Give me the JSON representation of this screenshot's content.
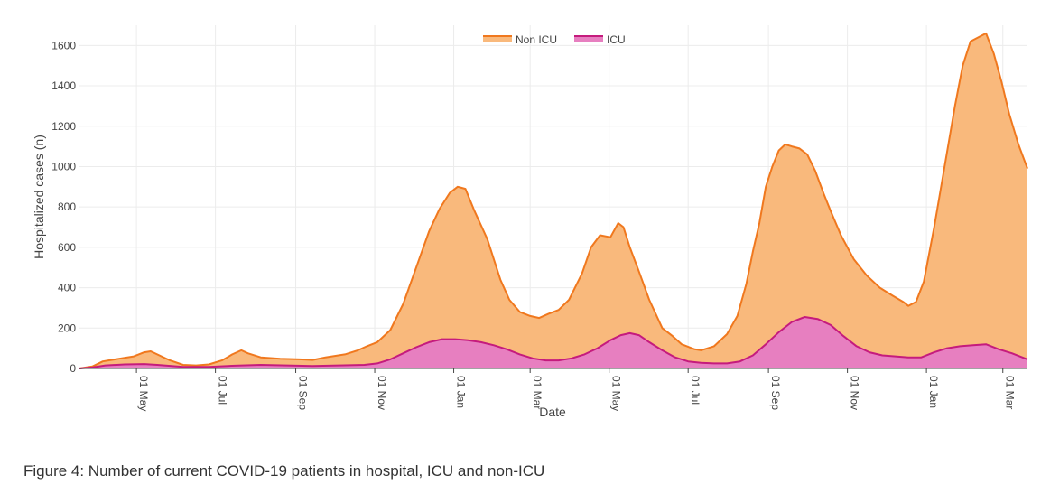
{
  "caption": "Figure 4: Number of current COVID-19 patients in hospital, ICU and non-ICU",
  "chart_data": {
    "type": "area",
    "title": "",
    "xlabel": "Date",
    "ylabel": "Hospitalized cases (n)",
    "x_range_days": [
      0,
      732
    ],
    "ylim": [
      0,
      1700
    ],
    "grid": true,
    "legend": "top-center",
    "y_ticks": [
      0,
      200,
      400,
      600,
      800,
      1000,
      1200,
      1400,
      1600
    ],
    "x_ticks": [
      {
        "label": "01 May",
        "day": 44
      },
      {
        "label": "01 Jul",
        "day": 105
      },
      {
        "label": "01 Sep",
        "day": 167
      },
      {
        "label": "01 Nov",
        "day": 228
      },
      {
        "label": "01 Jan",
        "day": 289
      },
      {
        "label": "01 Mar",
        "day": 348
      },
      {
        "label": "01 May",
        "day": 409
      },
      {
        "label": "01 Jul",
        "day": 470
      },
      {
        "label": "01 Sep",
        "day": 532
      },
      {
        "label": "01 Nov",
        "day": 593
      },
      {
        "label": "01 Jan",
        "day": 654
      },
      {
        "label": "01 Mar",
        "day": 713
      }
    ],
    "series": [
      {
        "name": "Non ICU",
        "color": "#f0781e",
        "fill": "#f9b97c",
        "points": [
          [
            0,
            0
          ],
          [
            10,
            10
          ],
          [
            18,
            35
          ],
          [
            30,
            48
          ],
          [
            42,
            60
          ],
          [
            50,
            80
          ],
          [
            55,
            85
          ],
          [
            60,
            70
          ],
          [
            70,
            40
          ],
          [
            80,
            18
          ],
          [
            90,
            15
          ],
          [
            100,
            20
          ],
          [
            110,
            40
          ],
          [
            118,
            70
          ],
          [
            125,
            90
          ],
          [
            130,
            75
          ],
          [
            140,
            55
          ],
          [
            155,
            48
          ],
          [
            170,
            45
          ],
          [
            180,
            42
          ],
          [
            190,
            55
          ],
          [
            205,
            70
          ],
          [
            215,
            90
          ],
          [
            222,
            110
          ],
          [
            230,
            130
          ],
          [
            240,
            190
          ],
          [
            250,
            320
          ],
          [
            260,
            500
          ],
          [
            270,
            680
          ],
          [
            278,
            790
          ],
          [
            286,
            870
          ],
          [
            292,
            900
          ],
          [
            298,
            890
          ],
          [
            305,
            780
          ],
          [
            315,
            640
          ],
          [
            325,
            440
          ],
          [
            332,
            340
          ],
          [
            340,
            280
          ],
          [
            348,
            260
          ],
          [
            355,
            250
          ],
          [
            362,
            270
          ],
          [
            370,
            290
          ],
          [
            378,
            340
          ],
          [
            388,
            470
          ],
          [
            395,
            600
          ],
          [
            402,
            660
          ],
          [
            410,
            650
          ],
          [
            416,
            720
          ],
          [
            420,
            700
          ],
          [
            425,
            600
          ],
          [
            432,
            480
          ],
          [
            440,
            340
          ],
          [
            450,
            200
          ],
          [
            458,
            160
          ],
          [
            465,
            120
          ],
          [
            475,
            95
          ],
          [
            480,
            90
          ],
          [
            490,
            110
          ],
          [
            500,
            170
          ],
          [
            508,
            260
          ],
          [
            515,
            420
          ],
          [
            520,
            580
          ],
          [
            525,
            720
          ],
          [
            530,
            900
          ],
          [
            535,
            1000
          ],
          [
            540,
            1080
          ],
          [
            545,
            1110
          ],
          [
            550,
            1100
          ],
          [
            556,
            1090
          ],
          [
            562,
            1060
          ],
          [
            568,
            980
          ],
          [
            575,
            860
          ],
          [
            580,
            780
          ],
          [
            588,
            660
          ],
          [
            598,
            540
          ],
          [
            608,
            460
          ],
          [
            618,
            400
          ],
          [
            628,
            360
          ],
          [
            636,
            330
          ],
          [
            640,
            310
          ],
          [
            646,
            330
          ],
          [
            652,
            430
          ],
          [
            660,
            700
          ],
          [
            668,
            1000
          ],
          [
            676,
            1300
          ],
          [
            682,
            1500
          ],
          [
            688,
            1620
          ],
          [
            694,
            1640
          ],
          [
            700,
            1660
          ],
          [
            706,
            1560
          ],
          [
            712,
            1420
          ],
          [
            718,
            1260
          ],
          [
            725,
            1110
          ],
          [
            732,
            990
          ]
        ]
      },
      {
        "name": "ICU",
        "color": "#c51b7d",
        "fill": "#e77fc0",
        "points": [
          [
            0,
            0
          ],
          [
            10,
            5
          ],
          [
            20,
            15
          ],
          [
            35,
            20
          ],
          [
            50,
            22
          ],
          [
            60,
            18
          ],
          [
            80,
            8
          ],
          [
            100,
            8
          ],
          [
            120,
            14
          ],
          [
            140,
            18
          ],
          [
            160,
            15
          ],
          [
            180,
            12
          ],
          [
            200,
            15
          ],
          [
            220,
            18
          ],
          [
            230,
            25
          ],
          [
            240,
            45
          ],
          [
            250,
            75
          ],
          [
            260,
            105
          ],
          [
            270,
            130
          ],
          [
            280,
            145
          ],
          [
            290,
            145
          ],
          [
            300,
            140
          ],
          [
            310,
            130
          ],
          [
            320,
            115
          ],
          [
            330,
            95
          ],
          [
            340,
            70
          ],
          [
            350,
            50
          ],
          [
            360,
            40
          ],
          [
            370,
            40
          ],
          [
            380,
            50
          ],
          [
            390,
            70
          ],
          [
            400,
            100
          ],
          [
            410,
            140
          ],
          [
            418,
            165
          ],
          [
            425,
            175
          ],
          [
            432,
            165
          ],
          [
            440,
            130
          ],
          [
            450,
            90
          ],
          [
            460,
            55
          ],
          [
            470,
            35
          ],
          [
            480,
            28
          ],
          [
            490,
            25
          ],
          [
            500,
            25
          ],
          [
            510,
            35
          ],
          [
            520,
            65
          ],
          [
            530,
            120
          ],
          [
            540,
            180
          ],
          [
            550,
            230
          ],
          [
            560,
            255
          ],
          [
            570,
            245
          ],
          [
            580,
            215
          ],
          [
            590,
            160
          ],
          [
            600,
            110
          ],
          [
            610,
            80
          ],
          [
            620,
            65
          ],
          [
            630,
            60
          ],
          [
            640,
            55
          ],
          [
            650,
            55
          ],
          [
            660,
            80
          ],
          [
            670,
            100
          ],
          [
            680,
            110
          ],
          [
            690,
            115
          ],
          [
            700,
            120
          ],
          [
            710,
            95
          ],
          [
            720,
            75
          ],
          [
            732,
            45
          ]
        ]
      }
    ]
  }
}
